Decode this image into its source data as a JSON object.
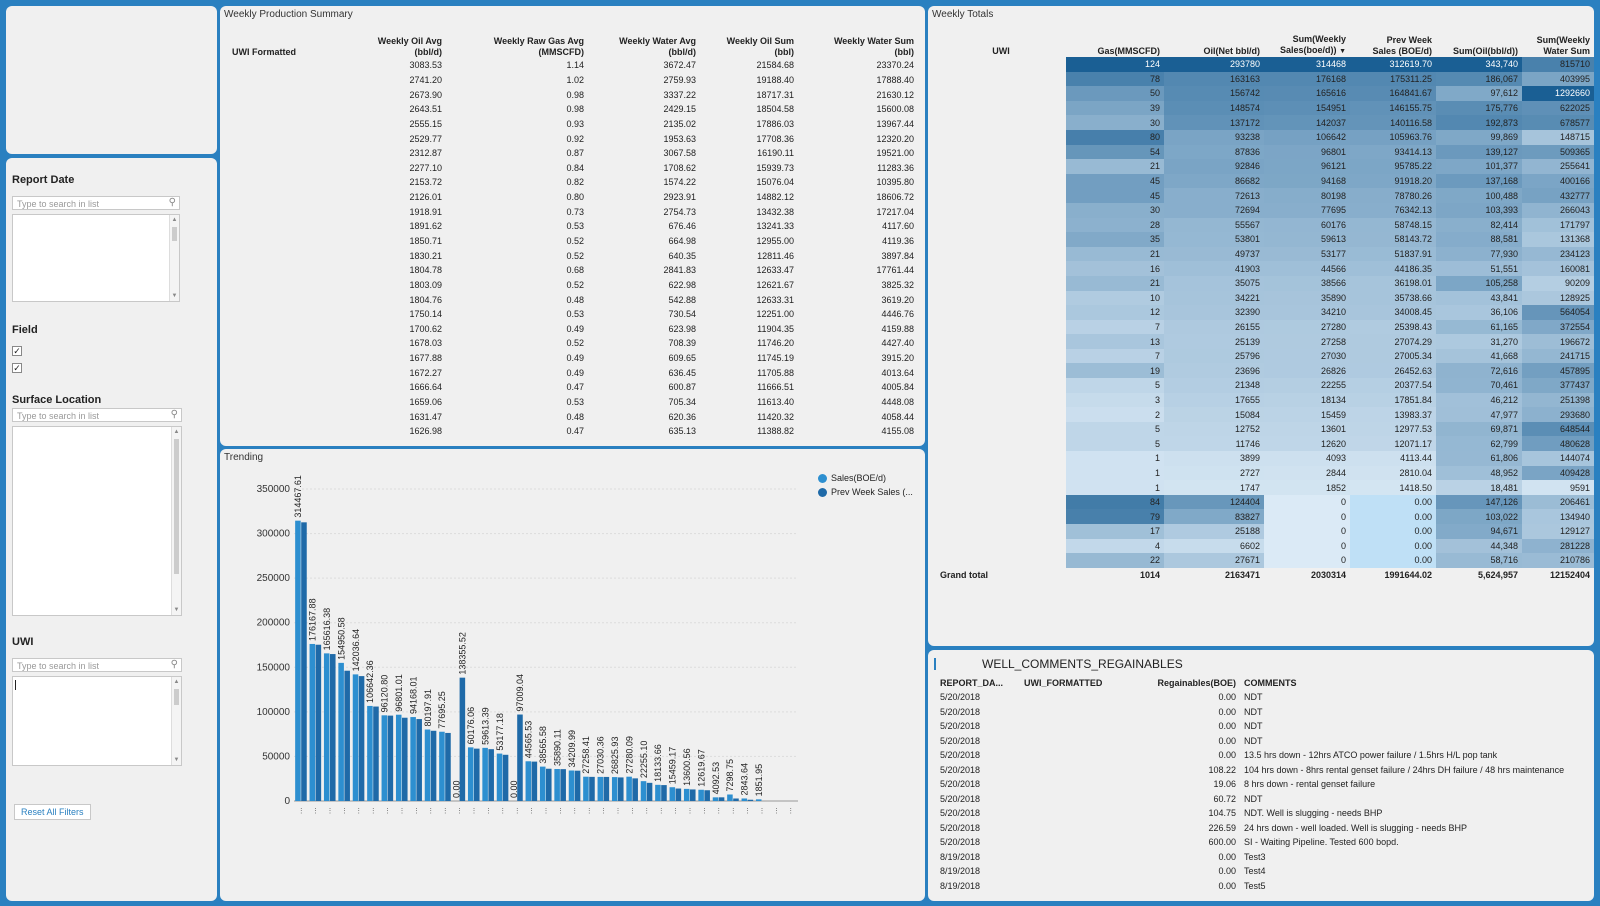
{
  "filters": {
    "report_date": {
      "label": "Report Date",
      "placeholder": "Type to search in list"
    },
    "field": {
      "label": "Field",
      "checkbox1": "✓",
      "checkbox2": "✓"
    },
    "surface_location": {
      "label": "Surface Location",
      "placeholder": "Type to search in list"
    },
    "uwi": {
      "label": "UWI",
      "placeholder": "Type to search in list"
    },
    "reset_label": "Reset All Filters"
  },
  "summary": {
    "title": "Weekly Production Summary",
    "headers": [
      "UWI Formatted",
      "Weekly Oil Avg\n(bbl/d)",
      "Weekly Raw Gas Avg\n(MMSCFD)",
      "Weekly Water Avg\n(bbl/d)",
      "Weekly Oil Sum\n(bbl)",
      "Weekly Water Sum\n(bbl)"
    ],
    "rows": [
      [
        "",
        "3083.53",
        "1.14",
        "3672.47",
        "21584.68",
        "23370.24"
      ],
      [
        "",
        "2741.20",
        "1.02",
        "2759.93",
        "19188.40",
        "17888.40"
      ],
      [
        "",
        "2673.90",
        "0.98",
        "3337.22",
        "18717.31",
        "21630.12"
      ],
      [
        "",
        "2643.51",
        "0.98",
        "2429.15",
        "18504.58",
        "15600.08"
      ],
      [
        "",
        "2555.15",
        "0.93",
        "2135.02",
        "17886.03",
        "13967.44"
      ],
      [
        "",
        "2529.77",
        "0.92",
        "1953.63",
        "17708.36",
        "12320.20"
      ],
      [
        "",
        "2312.87",
        "0.87",
        "3067.58",
        "16190.11",
        "19521.00"
      ],
      [
        "",
        "2277.10",
        "0.84",
        "1708.62",
        "15939.73",
        "11283.36"
      ],
      [
        "",
        "2153.72",
        "0.82",
        "1574.22",
        "15076.04",
        "10395.80"
      ],
      [
        "",
        "2126.01",
        "0.80",
        "2923.91",
        "14882.12",
        "18606.72"
      ],
      [
        "",
        "1918.91",
        "0.73",
        "2754.73",
        "13432.38",
        "17217.04"
      ],
      [
        "",
        "1891.62",
        "0.53",
        "676.46",
        "13241.33",
        "4117.60"
      ],
      [
        "",
        "1850.71",
        "0.52",
        "664.98",
        "12955.00",
        "4119.36"
      ],
      [
        "",
        "1830.21",
        "0.52",
        "640.35",
        "12811.46",
        "3897.84"
      ],
      [
        "",
        "1804.78",
        "0.68",
        "2841.83",
        "12633.47",
        "17761.44"
      ],
      [
        "",
        "1803.09",
        "0.52",
        "622.98",
        "12621.67",
        "3825.32"
      ],
      [
        "",
        "1804.76",
        "0.48",
        "542.88",
        "12633.31",
        "3619.20"
      ],
      [
        "",
        "1750.14",
        "0.53",
        "730.54",
        "12251.00",
        "4446.76"
      ],
      [
        "",
        "1700.62",
        "0.49",
        "623.98",
        "11904.35",
        "4159.88"
      ],
      [
        "",
        "1678.03",
        "0.52",
        "708.39",
        "11746.20",
        "4427.40"
      ],
      [
        "",
        "1677.88",
        "0.49",
        "609.65",
        "11745.19",
        "3915.20"
      ],
      [
        "",
        "1672.27",
        "0.49",
        "636.45",
        "11705.88",
        "4013.64"
      ],
      [
        "",
        "1666.64",
        "0.47",
        "600.87",
        "11666.51",
        "4005.84"
      ],
      [
        "",
        "1659.06",
        "0.53",
        "705.34",
        "11613.40",
        "4448.08"
      ],
      [
        "",
        "1631.47",
        "0.48",
        "620.36",
        "11420.32",
        "4058.44"
      ],
      [
        "",
        "1626.98",
        "0.47",
        "635.13",
        "11388.82",
        "4155.08"
      ]
    ]
  },
  "totals": {
    "title": "Weekly Totals",
    "headers": [
      "UWI",
      "Gas(MMSCFD)",
      "Oil(Net bbl/d)",
      "Sum(Weekly\nSales(boe/d))",
      "Prev Week\nSales (BOE/d)",
      "Sum(Oil(bbl/d))",
      "Sum(Weekly\nWater Sum"
    ],
    "sort_icon": "▼",
    "rows": [
      [
        "",
        "124",
        "293780",
        "314468",
        "312619.70",
        "343,740",
        "815710"
      ],
      [
        "",
        "78",
        "163163",
        "176168",
        "175311.25",
        "186,067",
        "403995"
      ],
      [
        "",
        "50",
        "156742",
        "165616",
        "164841.67",
        "97,612",
        "1292660"
      ],
      [
        "",
        "39",
        "148574",
        "154951",
        "146155.75",
        "175,776",
        "622025"
      ],
      [
        "",
        "30",
        "137172",
        "142037",
        "140116.58",
        "192,873",
        "678577"
      ],
      [
        "",
        "80",
        "93238",
        "106642",
        "105963.76",
        "99,869",
        "148715"
      ],
      [
        "",
        "54",
        "87836",
        "96801",
        "93414.13",
        "139,127",
        "509365"
      ],
      [
        "",
        "21",
        "92846",
        "96121",
        "95785.22",
        "101,377",
        "255641"
      ],
      [
        "",
        "45",
        "86682",
        "94168",
        "91918.20",
        "137,168",
        "400166"
      ],
      [
        "",
        "45",
        "72613",
        "80198",
        "78780.26",
        "100,488",
        "432777"
      ],
      [
        "",
        "30",
        "72694",
        "77695",
        "76342.13",
        "103,393",
        "266043"
      ],
      [
        "",
        "28",
        "55567",
        "60176",
        "58748.15",
        "82,414",
        "171797"
      ],
      [
        "",
        "35",
        "53801",
        "59613",
        "58143.72",
        "88,581",
        "131368"
      ],
      [
        "",
        "21",
        "49737",
        "53177",
        "51837.91",
        "77,930",
        "234123"
      ],
      [
        "",
        "16",
        "41903",
        "44566",
        "44186.35",
        "51,551",
        "160081"
      ],
      [
        "",
        "21",
        "35075",
        "38566",
        "36198.01",
        "105,258",
        "90209"
      ],
      [
        "",
        "10",
        "34221",
        "35890",
        "35738.66",
        "43,841",
        "128925"
      ],
      [
        "",
        "12",
        "32390",
        "34210",
        "34008.45",
        "36,106",
        "564054"
      ],
      [
        "",
        "7",
        "26155",
        "27280",
        "25398.43",
        "61,165",
        "372554"
      ],
      [
        "",
        "13",
        "25139",
        "27258",
        "27074.29",
        "31,270",
        "196672"
      ],
      [
        "",
        "7",
        "25796",
        "27030",
        "27005.34",
        "41,668",
        "241715"
      ],
      [
        "",
        "19",
        "23696",
        "26826",
        "26452.63",
        "72,616",
        "457895"
      ],
      [
        "",
        "5",
        "21348",
        "22255",
        "20377.54",
        "70,461",
        "377437"
      ],
      [
        "",
        "3",
        "17655",
        "18134",
        "17851.84",
        "46,212",
        "251398"
      ],
      [
        "",
        "2",
        "15084",
        "15459",
        "13983.37",
        "47,977",
        "293680"
      ],
      [
        "",
        "5",
        "12752",
        "13601",
        "12977.53",
        "69,871",
        "648544"
      ],
      [
        "",
        "5",
        "11746",
        "12620",
        "12071.17",
        "62,799",
        "480628"
      ],
      [
        "",
        "1",
        "3899",
        "4093",
        "4113.44",
        "61,806",
        "144074"
      ],
      [
        "",
        "1",
        "2727",
        "2844",
        "2810.04",
        "48,952",
        "409428"
      ],
      [
        "",
        "1",
        "1747",
        "1852",
        "1418.50",
        "18,481",
        "9591"
      ],
      [
        "",
        "84",
        "124404",
        "0",
        "0.00",
        "147,126",
        "206461"
      ],
      [
        "",
        "79",
        "83827",
        "0",
        "0.00",
        "103,022",
        "134940"
      ],
      [
        "",
        "17",
        "25188",
        "0",
        "0.00",
        "94,671",
        "129127"
      ],
      [
        "",
        "4",
        "6602",
        "0",
        "0.00",
        "44,348",
        "281228"
      ],
      [
        "",
        "22",
        "27671",
        "0",
        "0.00",
        "58,716",
        "210786"
      ]
    ],
    "grand_total": [
      "Grand total",
      "1014",
      "2163471",
      "2030314",
      "1991644.02",
      "5,624,957",
      "12152404"
    ]
  },
  "comments": {
    "title": "WELL_COMMENTS_REGAINABLES",
    "headers": [
      "REPORT_DA...",
      "UWI_FORMATTED",
      "Regainables(BOE)",
      "COMMENTS"
    ],
    "rows": [
      [
        "5/20/2018",
        "",
        "0.00",
        "NDT"
      ],
      [
        "5/20/2018",
        "",
        "0.00",
        "NDT"
      ],
      [
        "5/20/2018",
        "",
        "0.00",
        "NDT"
      ],
      [
        "5/20/2018",
        "",
        "0.00",
        "NDT"
      ],
      [
        "5/20/2018",
        "",
        "0.00",
        "13.5 hrs down - 12hrs ATCO power failure / 1.5hrs H/L pop tank"
      ],
      [
        "5/20/2018",
        "",
        "108.22",
        "104 hrs down - 8hrs rental genset failure / 24hrs DH failure / 48 hrs maintenance"
      ],
      [
        "5/20/2018",
        "",
        "19.06",
        "8 hrs down - rental genset failure"
      ],
      [
        "5/20/2018",
        "",
        "60.72",
        "NDT"
      ],
      [
        "5/20/2018",
        "",
        "104.75",
        "NDT.  Well is slugging - needs BHP"
      ],
      [
        "5/20/2018",
        "",
        "226.59",
        "24 hrs down - well loaded.  Well is slugging - needs BHP"
      ],
      [
        "5/20/2018",
        "",
        "600.00",
        "SI - Waiting Pipeline.  Tested 600 bopd."
      ],
      [
        "8/19/2018",
        "",
        "0.00",
        "Test3"
      ],
      [
        "8/19/2018",
        "",
        "0.00",
        "Test4"
      ],
      [
        "8/19/2018",
        "",
        "0.00",
        "Test5"
      ]
    ]
  },
  "trending": {
    "title": "Trending"
  },
  "chart_data": {
    "type": "bar",
    "title": "Trending",
    "ylim": [
      0,
      350000
    ],
    "yticks": [
      "0",
      "50000",
      "100000",
      "150000",
      "200000",
      "250000",
      "300000",
      "350000"
    ],
    "legend": "top-right",
    "series": [
      {
        "name": "Sales(BOE/d)",
        "color": "#2d8fd0",
        "values": [
          314467.61,
          176167.88,
          165616.38,
          154950.58,
          142036.64,
          106642.36,
          96120.8,
          96801.01,
          94168.01,
          80197.91,
          77695.25,
          0,
          60176.06,
          59613.39,
          53177.18,
          0,
          44565.53,
          38565.58,
          35890.11,
          34209.99,
          27258.41,
          27030.36,
          26825.93,
          27280.09,
          22255.1,
          18133.66,
          15459.17,
          13600.56,
          12619.67,
          4092.53,
          7298.75,
          2843.64,
          1851.95,
          0,
          0
        ]
      },
      {
        "name": "Prev Week Sales (...",
        "color": "#1f6aa8",
        "values": [
          312619.7,
          175311.25,
          164841.67,
          146155.75,
          140116.58,
          105963.76,
          95785.22,
          93414.13,
          91918.2,
          78780.26,
          76342.13,
          138355.52,
          58748.15,
          58143.72,
          51837.91,
          97009.04,
          44186.35,
          36198.01,
          35738.66,
          34008.45,
          27074.29,
          27005.34,
          26452.63,
          25398.43,
          20377.54,
          17851.84,
          13983.37,
          12977.53,
          12071.17,
          4113.44,
          2810.04,
          1418.5,
          0,
          0,
          0
        ]
      }
    ],
    "labels": [
      "314467.61",
      "176167.88",
      "165616.38",
      "154950.58",
      "142036.64",
      "106642.36",
      "96120.80",
      "96801.01",
      "94168.01",
      "80197.91",
      "77695.25",
      "0.00",
      "60176.06",
      "59613.39",
      "53177.18",
      "0.00",
      "44565.53",
      "38565.58",
      "35890.11",
      "34209.99",
      "27258.41",
      "27030.36",
      "26825.93",
      "27280.09",
      "22255.10",
      "18133.66",
      "15459.17",
      "13600.56",
      "12619.67",
      "4092.53",
      "7298.75",
      "2843.64",
      "1851.95",
      "",
      ""
    ],
    "extra_labels": [
      {
        "index": 11,
        "text": "138355.52"
      },
      {
        "index": 15,
        "text": "97009.04"
      }
    ]
  }
}
